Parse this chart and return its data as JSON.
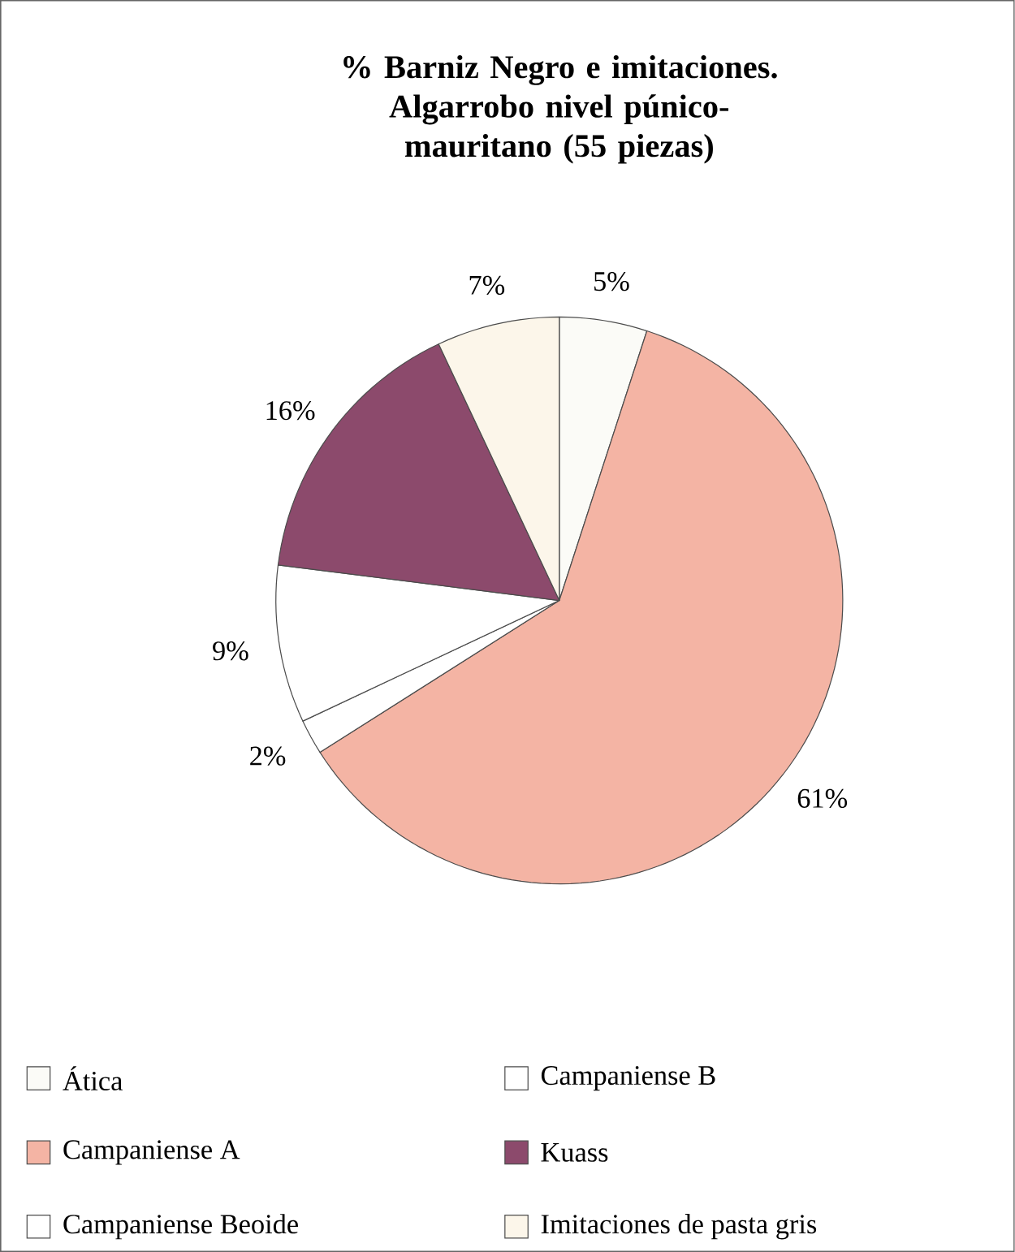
{
  "chart_data": {
    "type": "pie",
    "title": "% Barniz Negro e imitaciones. Algarrobo nivel púnico-mauritano (55 piezas)",
    "categories": [
      "Ática",
      "Campaniense A",
      "Campaniense Beoide",
      "Campaniense B",
      "Kuass",
      "Imitaciones de pasta gris"
    ],
    "values": [
      5,
      61,
      2,
      9,
      16,
      7
    ],
    "value_labels": [
      "5%",
      "61%",
      "2%",
      "9%",
      "16%",
      "7%"
    ],
    "colors": [
      "#fbfbf7",
      "#f4b4a4",
      "#ffffff",
      "#ffffff",
      "#8c4a6c",
      "#fcf6ea"
    ],
    "legend": "bottom"
  }
}
